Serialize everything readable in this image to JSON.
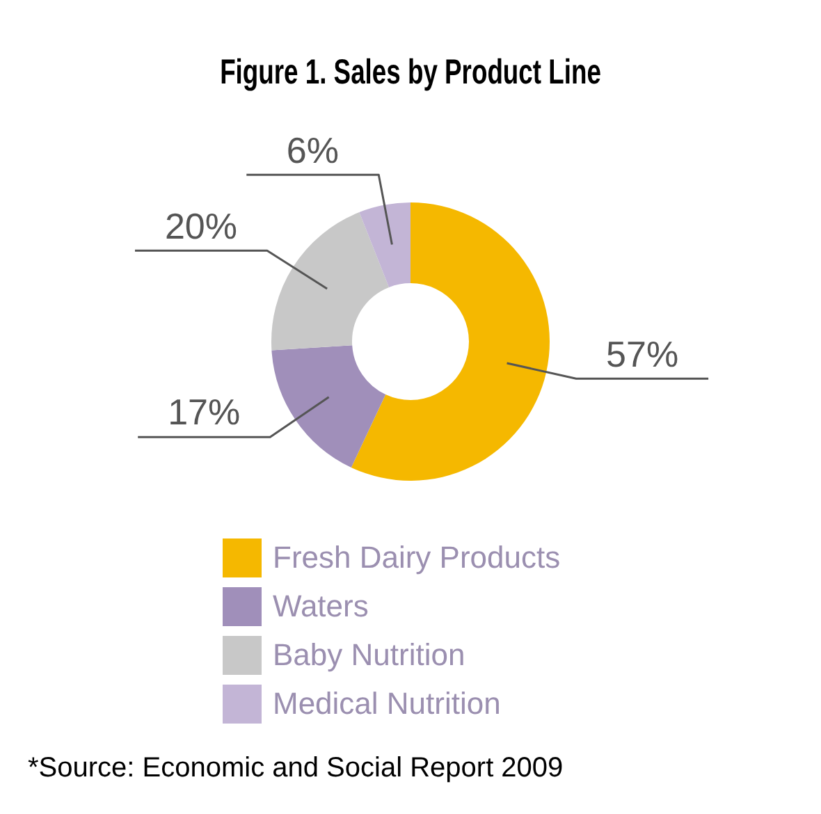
{
  "chart_data": {
    "type": "donut",
    "title": "Figure 1. Sales by Product Line",
    "categories": [
      "Fresh Dairy Products",
      "Waters",
      "Baby Nutrition",
      "Medical Nutrition"
    ],
    "values": [
      57,
      17,
      20,
      6
    ],
    "value_labels": [
      "57%",
      "17%",
      "20%",
      "6%"
    ],
    "colors": [
      "#f5b800",
      "#a08fba",
      "#c8c8c8",
      "#c3b5d6"
    ],
    "legend": "bottom",
    "annotations": [
      "*Source: Economic and Social Report 2009"
    ]
  }
}
